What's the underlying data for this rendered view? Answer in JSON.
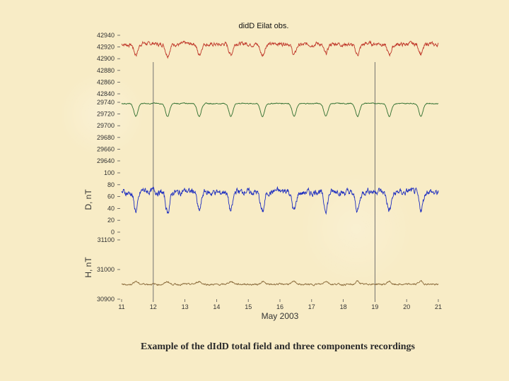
{
  "chart_data": {
    "type": "line",
    "title": "didD Eilat obs.",
    "xlabel": "May  2003",
    "x_ticks": [
      11,
      12,
      13,
      14,
      15,
      16,
      17,
      18,
      19,
      20,
      21
    ],
    "xlim": [
      11,
      21
    ],
    "marker_days": [
      12,
      19
    ],
    "panels": [
      {
        "name": "",
        "ylabel": "",
        "ylim": [
          42840,
          42950
        ],
        "ticks": [
          42940,
          42920,
          42900,
          42880,
          42860,
          42840
        ],
        "color": "#c0392b",
        "base": 42925,
        "dip": 18,
        "noise": 5
      },
      {
        "name": "",
        "ylabel": "",
        "ylim": [
          29640,
          29750
        ],
        "ticks": [
          29740,
          29720,
          29700,
          29680,
          29660,
          29640
        ],
        "color": "#2e6e2e",
        "base": 29738,
        "dip": 22,
        "noise": 1.2
      },
      {
        "name": "",
        "ylabel": "D, nT",
        "ylim": [
          0,
          110
        ],
        "ticks": [
          100,
          80,
          60,
          40,
          20,
          0
        ],
        "color": "#1f2fbf",
        "base": 68,
        "dip": 32,
        "noise": 8
      },
      {
        "name": "",
        "ylabel": "H, nT",
        "ylim": [
          30900,
          31100
        ],
        "ticks": [
          31100,
          31000,
          30900
        ],
        "color": "#8a6a3a",
        "base": 30950,
        "dip": -10,
        "noise": 4
      }
    ]
  },
  "caption": "Example of  the dIdD total field and three components recordings"
}
